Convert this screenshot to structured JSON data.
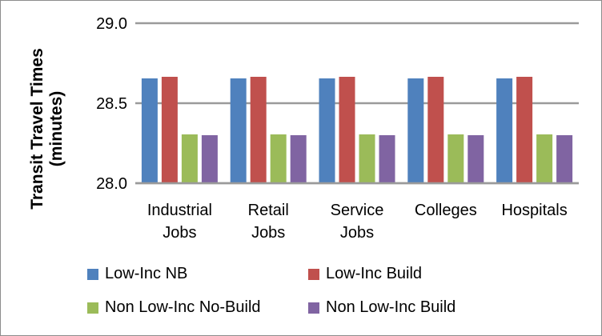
{
  "chart_data": {
    "type": "bar",
    "title": "",
    "xlabel": "",
    "ylabel": "Transit Travel Times (minutes)",
    "ylabel_lines": [
      "Transit Travel Times",
      "(minutes)"
    ],
    "ylim": [
      28.0,
      29.0
    ],
    "yticks": [
      "28.0",
      "28.5",
      "29.0"
    ],
    "grid": true,
    "legend_position": "bottom",
    "categories": [
      [
        "Industrial",
        "Jobs"
      ],
      [
        "Retail",
        "Jobs"
      ],
      [
        "Service",
        "Jobs"
      ],
      [
        "Colleges"
      ],
      [
        "Hospitals"
      ]
    ],
    "series": [
      {
        "name": "Low-Inc NB",
        "color": "#4f81bd",
        "values": [
          28.655,
          28.655,
          28.655,
          28.655,
          28.655
        ]
      },
      {
        "name": "Low-Inc Build",
        "color": "#c0504d",
        "values": [
          28.665,
          28.665,
          28.665,
          28.665,
          28.665
        ]
      },
      {
        "name": "Non Low-Inc No-Build",
        "color": "#9bbb59",
        "values": [
          28.305,
          28.305,
          28.305,
          28.305,
          28.305
        ]
      },
      {
        "name": "Non Low-Inc Build",
        "color": "#8064a2",
        "values": [
          28.3,
          28.3,
          28.3,
          28.3,
          28.3
        ]
      }
    ]
  }
}
